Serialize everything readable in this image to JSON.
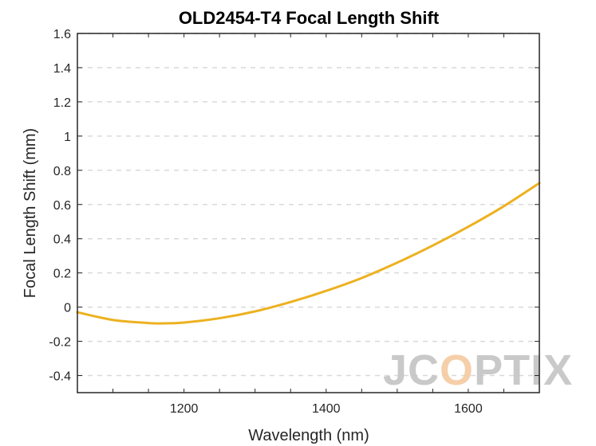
{
  "chart_data": {
    "type": "line",
    "title": "OLD2454-T4 Focal Length Shift",
    "xlabel": "Wavelength (nm)",
    "ylabel": "Focal Length Shift (mm)",
    "xlim": [
      1050,
      1700
    ],
    "ylim": [
      -0.5,
      1.6
    ],
    "x_ticks": [
      1200,
      1400,
      1600
    ],
    "y_ticks": [
      -0.4,
      -0.2,
      0,
      0.2,
      0.4,
      0.6,
      0.8,
      1,
      1.2,
      1.4,
      1.6
    ],
    "x_tick_labels": [
      "1200",
      "1400",
      "1600"
    ],
    "y_tick_labels": [
      "-0.4",
      "-0.2",
      "0",
      "0.2",
      "0.4",
      "0.6",
      "0.8",
      "1",
      "1.2",
      "1.4",
      "1.6"
    ],
    "grid": "horizontal dashed",
    "series": [
      {
        "color": "#EDB120",
        "x": [
          1050,
          1100,
          1150,
          1170,
          1200,
          1250,
          1300,
          1350,
          1400,
          1450,
          1500,
          1550,
          1600,
          1650,
          1700
        ],
        "y": [
          -0.03,
          -0.075,
          -0.093,
          -0.095,
          -0.09,
          -0.065,
          -0.025,
          0.03,
          0.095,
          0.17,
          0.26,
          0.36,
          0.47,
          0.59,
          0.725
        ]
      }
    ]
  },
  "watermark": {
    "text": "JCOPTIX",
    "color": "#bfbfbf",
    "accent_color": "#f3c79a"
  }
}
